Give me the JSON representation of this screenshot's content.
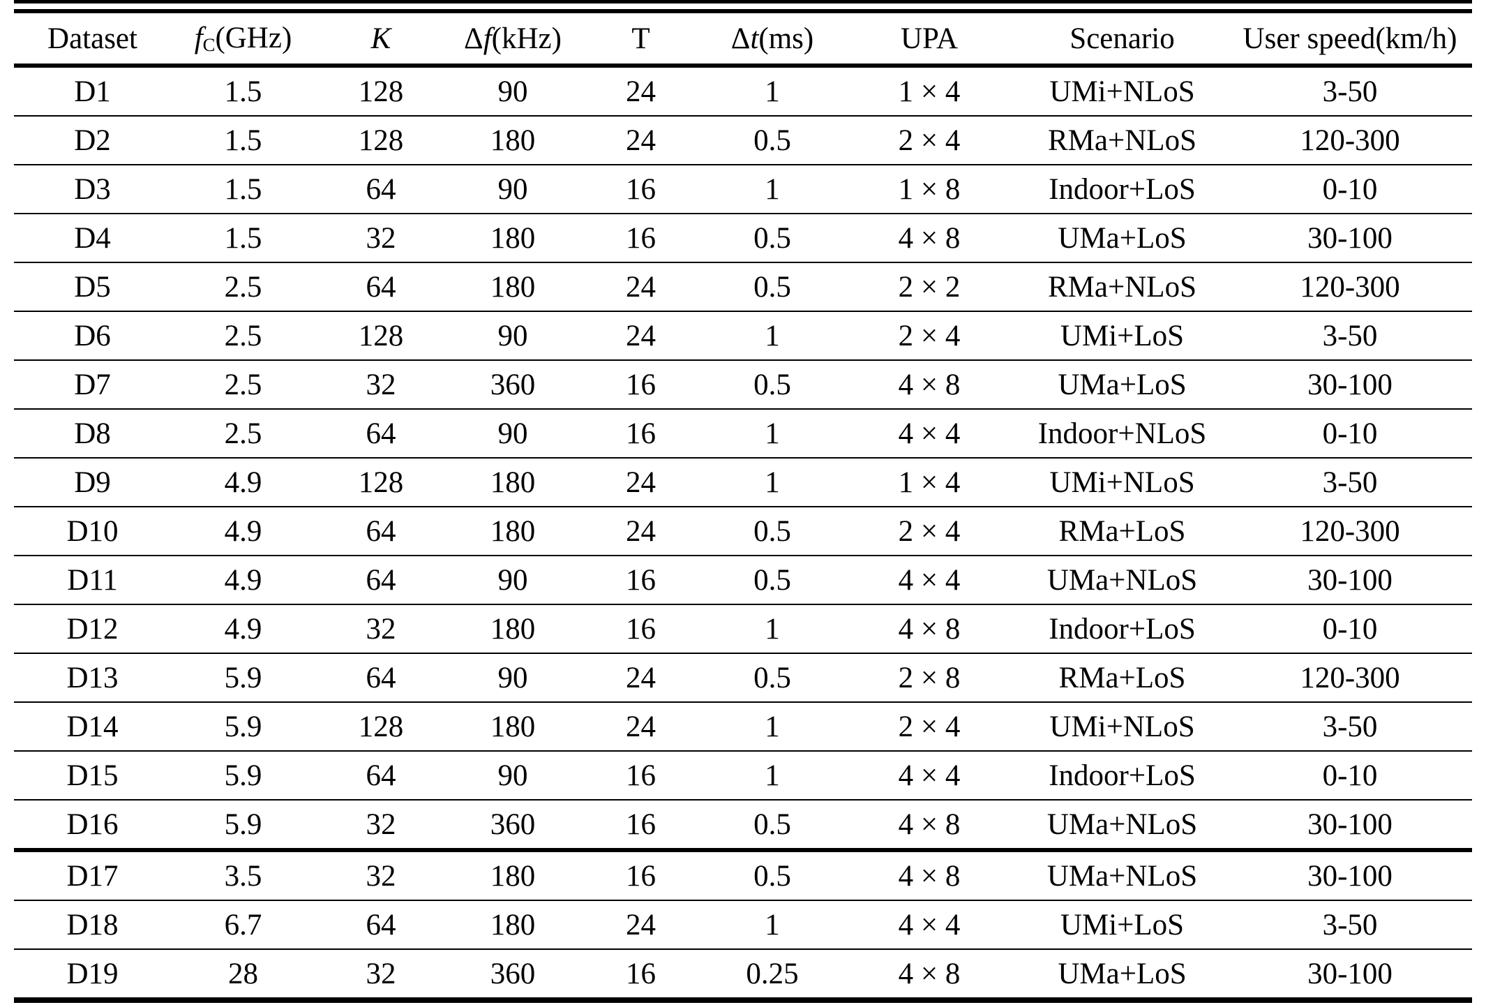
{
  "colors": {
    "text": "#000000",
    "background": "#ffffff",
    "rule": "#000000"
  },
  "table": {
    "columns": [
      {
        "name": "dataset",
        "segments": [
          {
            "text": "Dataset",
            "style": "normal"
          }
        ]
      },
      {
        "name": "fc-ghz",
        "segments": [
          {
            "text": "f",
            "style": "italic"
          },
          {
            "text": "C",
            "style": "sub"
          },
          {
            "text": "(GHz)",
            "style": "normal"
          }
        ]
      },
      {
        "name": "k",
        "segments": [
          {
            "text": "K",
            "style": "italic"
          }
        ]
      },
      {
        "name": "delta-f-khz",
        "segments": [
          {
            "text": "Δ",
            "style": "normal"
          },
          {
            "text": "f",
            "style": "italic"
          },
          {
            "text": "(kHz)",
            "style": "normal"
          }
        ]
      },
      {
        "name": "t",
        "segments": [
          {
            "text": "T",
            "style": "normal"
          }
        ]
      },
      {
        "name": "delta-t-ms",
        "segments": [
          {
            "text": "Δ",
            "style": "normal"
          },
          {
            "text": "t",
            "style": "italic"
          },
          {
            "text": "(ms)",
            "style": "normal"
          }
        ]
      },
      {
        "name": "upa",
        "segments": [
          {
            "text": "UPA",
            "style": "normal"
          }
        ]
      },
      {
        "name": "scenario",
        "segments": [
          {
            "text": "Scenario",
            "style": "normal"
          }
        ]
      },
      {
        "name": "user-speed",
        "segments": [
          {
            "text": "User speed(km/h)",
            "style": "normal"
          }
        ]
      }
    ],
    "rows": [
      [
        "D1",
        "1.5",
        "128",
        "90",
        "24",
        "1",
        "1 × 4",
        "UMi+NLoS",
        "3-50"
      ],
      [
        "D2",
        "1.5",
        "128",
        "180",
        "24",
        "0.5",
        "2 × 4",
        "RMa+NLoS",
        "120-300"
      ],
      [
        "D3",
        "1.5",
        "64",
        "90",
        "16",
        "1",
        "1 × 8",
        "Indoor+LoS",
        "0-10"
      ],
      [
        "D4",
        "1.5",
        "32",
        "180",
        "16",
        "0.5",
        "4 × 8",
        "UMa+LoS",
        "30-100"
      ],
      [
        "D5",
        "2.5",
        "64",
        "180",
        "24",
        "0.5",
        "2 × 2",
        "RMa+NLoS",
        "120-300"
      ],
      [
        "D6",
        "2.5",
        "128",
        "90",
        "24",
        "1",
        "2 × 4",
        "UMi+LoS",
        "3-50"
      ],
      [
        "D7",
        "2.5",
        "32",
        "360",
        "16",
        "0.5",
        "4 × 8",
        "UMa+LoS",
        "30-100"
      ],
      [
        "D8",
        "2.5",
        "64",
        "90",
        "16",
        "1",
        "4 × 4",
        "Indoor+NLoS",
        "0-10"
      ],
      [
        "D9",
        "4.9",
        "128",
        "180",
        "24",
        "1",
        "1 × 4",
        "UMi+NLoS",
        "3-50"
      ],
      [
        "D10",
        "4.9",
        "64",
        "180",
        "24",
        "0.5",
        "2 × 4",
        "RMa+LoS",
        "120-300"
      ],
      [
        "D11",
        "4.9",
        "64",
        "90",
        "16",
        "0.5",
        "4 × 4",
        "UMa+NLoS",
        "30-100"
      ],
      [
        "D12",
        "4.9",
        "32",
        "180",
        "16",
        "1",
        "4 × 8",
        "Indoor+LoS",
        "0-10"
      ],
      [
        "D13",
        "5.9",
        "64",
        "90",
        "24",
        "0.5",
        "2 × 8",
        "RMa+LoS",
        "120-300"
      ],
      [
        "D14",
        "5.9",
        "128",
        "180",
        "24",
        "1",
        "2 × 4",
        "UMi+NLoS",
        "3-50"
      ],
      [
        "D15",
        "5.9",
        "64",
        "90",
        "16",
        "1",
        "4 × 4",
        "Indoor+LoS",
        "0-10"
      ],
      [
        "D16",
        "5.9",
        "32",
        "360",
        "16",
        "0.5",
        "4 × 8",
        "UMa+NLoS",
        "30-100"
      ],
      [
        "D17",
        "3.5",
        "32",
        "180",
        "16",
        "0.5",
        "4 × 8",
        "UMa+NLoS",
        "30-100"
      ],
      [
        "D18",
        "6.7",
        "64",
        "180",
        "24",
        "1",
        "4 × 4",
        "UMi+LoS",
        "3-50"
      ],
      [
        "D19",
        "28",
        "32",
        "360",
        "16",
        "0.25",
        "4 × 8",
        "UMa+LoS",
        "30-100"
      ]
    ],
    "group_break_after": "D16"
  }
}
